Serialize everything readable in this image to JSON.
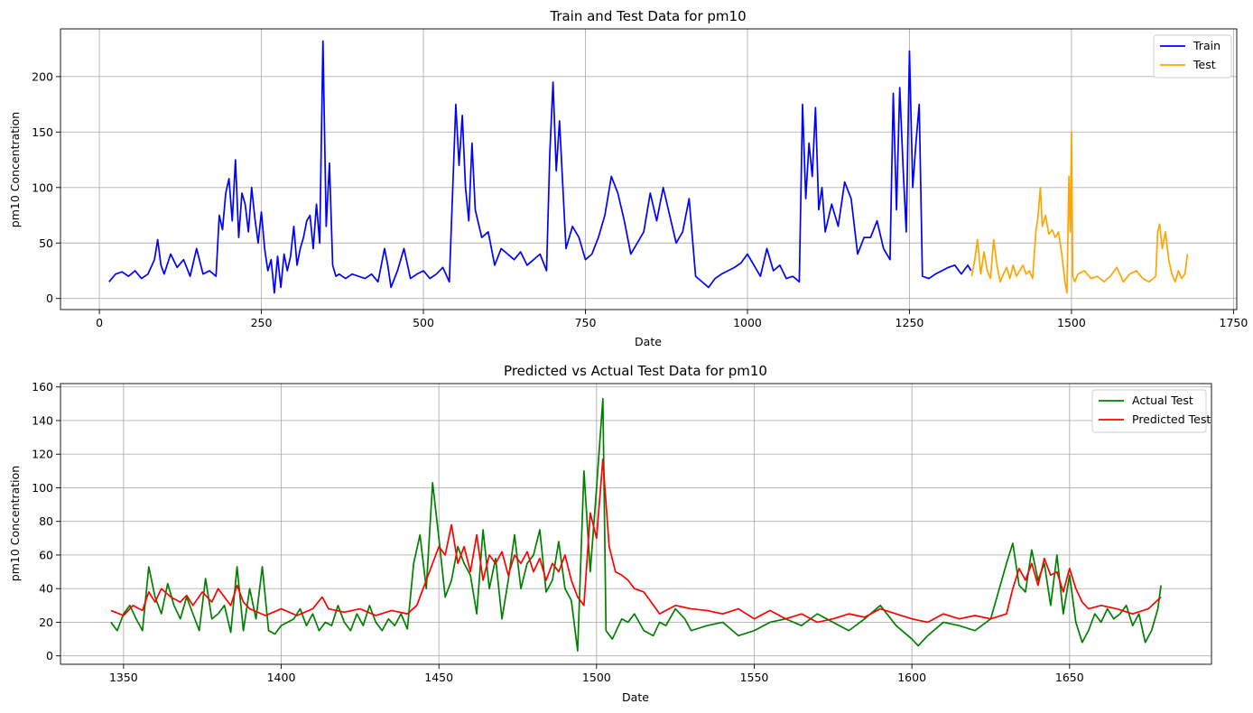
{
  "chart_data": [
    {
      "type": "line",
      "title": "Train and Test Data for  pm10",
      "xlabel": "Date",
      "ylabel": "pm10 Concentration",
      "xlim": [
        -60,
        1755
      ],
      "ylim": [
        -10,
        243
      ],
      "xticks": [
        0,
        250,
        500,
        750,
        1000,
        1250,
        1500,
        1750
      ],
      "yticks": [
        0,
        50,
        100,
        150,
        200
      ],
      "grid": true,
      "legend_position": "top-right",
      "series": [
        {
          "name": "Train",
          "color": "#0000ff",
          "x": [
            15,
            25,
            35,
            45,
            55,
            65,
            75,
            85,
            90,
            95,
            100,
            110,
            120,
            130,
            140,
            150,
            160,
            170,
            180,
            185,
            190,
            195,
            200,
            205,
            210,
            215,
            220,
            225,
            230,
            235,
            240,
            245,
            250,
            255,
            260,
            265,
            270,
            275,
            280,
            285,
            290,
            295,
            300,
            305,
            310,
            315,
            320,
            325,
            330,
            335,
            340,
            345,
            350,
            355,
            360,
            365,
            370,
            380,
            390,
            400,
            410,
            420,
            430,
            440,
            445,
            450,
            460,
            470,
            480,
            490,
            500,
            510,
            520,
            530,
            540,
            545,
            550,
            555,
            560,
            565,
            570,
            575,
            580,
            590,
            600,
            610,
            620,
            630,
            640,
            650,
            660,
            670,
            680,
            690,
            695,
            700,
            705,
            710,
            720,
            730,
            740,
            750,
            760,
            770,
            780,
            790,
            800,
            810,
            820,
            830,
            840,
            850,
            860,
            870,
            880,
            890,
            900,
            910,
            920,
            930,
            940,
            950,
            960,
            970,
            980,
            990,
            1000,
            1010,
            1020,
            1030,
            1040,
            1050,
            1060,
            1070,
            1080,
            1085,
            1090,
            1095,
            1100,
            1105,
            1110,
            1115,
            1120,
            1130,
            1140,
            1150,
            1160,
            1170,
            1180,
            1190,
            1200,
            1210,
            1220,
            1225,
            1230,
            1235,
            1240,
            1245,
            1250,
            1255,
            1260,
            1265,
            1270,
            1280,
            1290,
            1300,
            1310,
            1320,
            1330,
            1340,
            1345
          ],
          "values": [
            15,
            22,
            24,
            20,
            25,
            18,
            22,
            35,
            53,
            30,
            22,
            40,
            28,
            35,
            20,
            45,
            22,
            25,
            20,
            75,
            62,
            95,
            108,
            70,
            125,
            55,
            95,
            85,
            60,
            100,
            72,
            50,
            78,
            45,
            25,
            35,
            5,
            38,
            10,
            40,
            25,
            38,
            65,
            30,
            45,
            55,
            70,
            75,
            45,
            85,
            50,
            232,
            65,
            122,
            30,
            20,
            22,
            18,
            22,
            20,
            18,
            22,
            15,
            45,
            30,
            10,
            25,
            45,
            18,
            22,
            25,
            18,
            22,
            28,
            15,
            95,
            175,
            120,
            165,
            100,
            70,
            140,
            80,
            55,
            60,
            30,
            45,
            40,
            35,
            42,
            30,
            35,
            40,
            25,
            130,
            195,
            115,
            160,
            45,
            65,
            55,
            35,
            40,
            55,
            75,
            110,
            95,
            70,
            40,
            50,
            60,
            95,
            70,
            100,
            75,
            50,
            60,
            90,
            20,
            15,
            10,
            18,
            22,
            25,
            28,
            32,
            40,
            30,
            20,
            45,
            25,
            30,
            18,
            20,
            15,
            175,
            90,
            140,
            110,
            172,
            80,
            100,
            60,
            85,
            65,
            105,
            90,
            40,
            55,
            55,
            70,
            45,
            35,
            185,
            80,
            190,
            120,
            60,
            223,
            100,
            140,
            175,
            20,
            18,
            22,
            25,
            28,
            30,
            22,
            30,
            25
          ]
        },
        {
          "name": "Test",
          "color": "#ffa500",
          "x": [
            1346,
            1350,
            1355,
            1360,
            1365,
            1370,
            1375,
            1380,
            1385,
            1390,
            1395,
            1400,
            1405,
            1410,
            1415,
            1420,
            1425,
            1430,
            1435,
            1440,
            1445,
            1448,
            1452,
            1455,
            1460,
            1465,
            1470,
            1475,
            1480,
            1485,
            1490,
            1493,
            1496,
            1498,
            1500,
            1502,
            1505,
            1510,
            1520,
            1530,
            1540,
            1550,
            1560,
            1570,
            1580,
            1590,
            1600,
            1610,
            1620,
            1630,
            1633,
            1636,
            1640,
            1645,
            1650,
            1655,
            1660,
            1665,
            1670,
            1675,
            1679
          ],
          "values": [
            20,
            32,
            53,
            22,
            42,
            25,
            18,
            53,
            30,
            15,
            22,
            28,
            18,
            30,
            20,
            25,
            30,
            22,
            25,
            18,
            60,
            72,
            100,
            65,
            75,
            58,
            62,
            55,
            60,
            40,
            15,
            5,
            110,
            60,
            150,
            20,
            15,
            22,
            25,
            18,
            20,
            15,
            20,
            28,
            15,
            22,
            25,
            18,
            15,
            20,
            60,
            67,
            45,
            60,
            35,
            22,
            15,
            25,
            18,
            22,
            40
          ]
        }
      ]
    },
    {
      "type": "line",
      "title": "Predicted vs Actual Test Data for  pm10",
      "xlabel": "Date",
      "ylabel": "pm10 Concentration",
      "xlim": [
        1330,
        1695
      ],
      "ylim": [
        -5,
        162
      ],
      "xticks": [
        1350,
        1400,
        1450,
        1500,
        1550,
        1600,
        1650
      ],
      "yticks": [
        0,
        20,
        40,
        60,
        80,
        100,
        120,
        140,
        160
      ],
      "grid": true,
      "legend_position": "top-right",
      "series": [
        {
          "name": "Actual Test",
          "color": "#008000",
          "x": [
            1346,
            1348,
            1350,
            1352,
            1354,
            1356,
            1358,
            1360,
            1362,
            1364,
            1366,
            1368,
            1370,
            1372,
            1374,
            1376,
            1378,
            1380,
            1382,
            1384,
            1386,
            1388,
            1390,
            1392,
            1394,
            1396,
            1398,
            1400,
            1402,
            1404,
            1406,
            1408,
            1410,
            1412,
            1414,
            1416,
            1418,
            1420,
            1422,
            1424,
            1426,
            1428,
            1430,
            1432,
            1434,
            1436,
            1438,
            1440,
            1442,
            1444,
            1446,
            1448,
            1450,
            1452,
            1454,
            1456,
            1458,
            1460,
            1462,
            1464,
            1466,
            1468,
            1470,
            1472,
            1474,
            1476,
            1478,
            1480,
            1482,
            1484,
            1486,
            1488,
            1490,
            1492,
            1494,
            1496,
            1498,
            1500,
            1502,
            1503,
            1505,
            1508,
            1510,
            1512,
            1515,
            1518,
            1520,
            1522,
            1525,
            1528,
            1530,
            1535,
            1540,
            1545,
            1550,
            1555,
            1560,
            1565,
            1570,
            1575,
            1580,
            1585,
            1590,
            1595,
            1600,
            1602,
            1605,
            1610,
            1615,
            1620,
            1625,
            1630,
            1632,
            1634,
            1636,
            1638,
            1640,
            1642,
            1644,
            1646,
            1648,
            1650,
            1652,
            1654,
            1656,
            1658,
            1660,
            1662,
            1664,
            1666,
            1668,
            1670,
            1672,
            1674,
            1676,
            1678,
            1679
          ],
          "values": [
            20,
            15,
            25,
            30,
            22,
            15,
            53,
            35,
            25,
            43,
            30,
            22,
            35,
            25,
            15,
            46,
            22,
            25,
            30,
            14,
            53,
            15,
            40,
            22,
            53,
            15,
            13,
            18,
            20,
            22,
            28,
            18,
            25,
            15,
            20,
            18,
            30,
            20,
            15,
            25,
            18,
            30,
            20,
            15,
            22,
            18,
            25,
            16,
            55,
            72,
            40,
            103,
            70,
            35,
            45,
            65,
            55,
            48,
            25,
            75,
            40,
            58,
            22,
            45,
            72,
            40,
            55,
            60,
            75,
            38,
            45,
            68,
            40,
            33,
            3,
            110,
            50,
            100,
            153,
            15,
            10,
            22,
            20,
            25,
            15,
            12,
            20,
            18,
            28,
            22,
            15,
            18,
            20,
            12,
            15,
            20,
            22,
            18,
            25,
            20,
            15,
            22,
            30,
            18,
            10,
            6,
            12,
            20,
            18,
            15,
            22,
            55,
            67,
            42,
            38,
            63,
            45,
            55,
            30,
            60,
            25,
            48,
            20,
            8,
            15,
            25,
            20,
            28,
            22,
            25,
            30,
            18,
            25,
            8,
            15,
            28,
            42
          ]
        },
        {
          "name": "Predicted Test",
          "color": "#ff0000",
          "x": [
            1346,
            1350,
            1353,
            1356,
            1358,
            1360,
            1362,
            1365,
            1368,
            1370,
            1372,
            1375,
            1378,
            1380,
            1382,
            1384,
            1386,
            1388,
            1390,
            1395,
            1400,
            1405,
            1410,
            1413,
            1415,
            1420,
            1425,
            1430,
            1435,
            1440,
            1443,
            1446,
            1448,
            1450,
            1452,
            1454,
            1456,
            1458,
            1460,
            1462,
            1464,
            1466,
            1468,
            1470,
            1472,
            1474,
            1476,
            1478,
            1480,
            1482,
            1484,
            1486,
            1488,
            1490,
            1492,
            1494,
            1496,
            1498,
            1500,
            1502,
            1504,
            1506,
            1508,
            1510,
            1512,
            1515,
            1520,
            1525,
            1530,
            1535,
            1540,
            1545,
            1550,
            1555,
            1560,
            1565,
            1570,
            1575,
            1580,
            1585,
            1590,
            1595,
            1600,
            1605,
            1610,
            1615,
            1620,
            1625,
            1630,
            1632,
            1634,
            1636,
            1638,
            1640,
            1642,
            1644,
            1646,
            1648,
            1650,
            1652,
            1654,
            1656,
            1660,
            1665,
            1670,
            1675,
            1679
          ],
          "values": [
            27,
            24,
            30,
            27,
            38,
            32,
            40,
            35,
            32,
            36,
            30,
            38,
            32,
            40,
            35,
            30,
            42,
            32,
            28,
            24,
            28,
            24,
            28,
            35,
            28,
            26,
            28,
            24,
            27,
            25,
            30,
            45,
            55,
            65,
            60,
            78,
            55,
            65,
            50,
            72,
            45,
            60,
            55,
            62,
            48,
            60,
            55,
            62,
            50,
            58,
            45,
            55,
            50,
            60,
            45,
            35,
            30,
            85,
            70,
            117,
            65,
            50,
            48,
            45,
            40,
            38,
            25,
            30,
            28,
            27,
            25,
            28,
            22,
            27,
            22,
            25,
            20,
            22,
            25,
            23,
            28,
            25,
            22,
            20,
            25,
            22,
            24,
            22,
            25,
            40,
            52,
            45,
            55,
            42,
            58,
            48,
            50,
            38,
            52,
            40,
            32,
            28,
            30,
            28,
            25,
            28,
            35
          ]
        }
      ]
    }
  ]
}
